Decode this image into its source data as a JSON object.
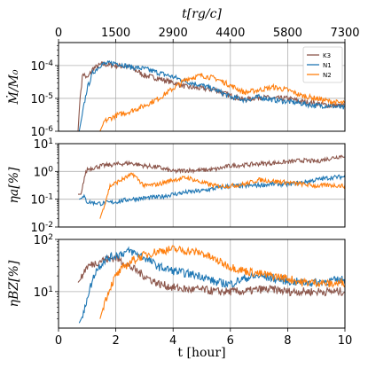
{
  "chart_data": [
    {
      "type": "line",
      "id": "mdot",
      "ylabel": "Ṁ/M₀",
      "yscale": "log",
      "ylim": [
        1e-06,
        0.0005
      ],
      "yticks": [
        {
          "value": 0.0001,
          "base": "10",
          "exp": "-4"
        },
        {
          "value": 1e-05,
          "base": "10",
          "exp": "-5"
        },
        {
          "value": 1e-06,
          "base": "10",
          "exp": "-6"
        }
      ],
      "grid": true,
      "legend_position": "top-right",
      "series": [
        {
          "name": "K3",
          "color": "#8c564b",
          "start": 0.68,
          "y": [
            [
              0.68,
              1e-06
            ],
            [
              0.75,
              1e-05
            ],
            [
              0.85,
              6e-05
            ],
            [
              1.0,
              4e-05
            ],
            [
              1.2,
              8e-05
            ],
            [
              1.5,
              0.00011
            ],
            [
              2.0,
              0.0001
            ],
            [
              2.5,
              9e-05
            ],
            [
              3.0,
              5e-05
            ],
            [
              3.5,
              4e-05
            ],
            [
              4.0,
              3e-05
            ],
            [
              4.5,
              2.2e-05
            ],
            [
              5.0,
              2e-05
            ],
            [
              5.5,
              1.8e-05
            ],
            [
              6.0,
              1.2e-05
            ],
            [
              6.5,
              9e-06
            ],
            [
              7.0,
              1.1e-05
            ],
            [
              7.5,
              1e-05
            ],
            [
              8.0,
              1e-05
            ],
            [
              8.5,
              8e-06
            ],
            [
              9.0,
              7e-06
            ],
            [
              9.5,
              6e-06
            ],
            [
              10.0,
              6e-06
            ]
          ]
        },
        {
          "name": "N1",
          "color": "#1f77b4",
          "start": 0.72,
          "y": [
            [
              0.72,
              1e-06
            ],
            [
              0.85,
              4e-06
            ],
            [
              1.0,
              2e-05
            ],
            [
              1.2,
              6e-05
            ],
            [
              1.5,
              0.00011
            ],
            [
              2.0,
              0.00012
            ],
            [
              2.5,
              9e-05
            ],
            [
              3.0,
              8e-05
            ],
            [
              3.5,
              6e-05
            ],
            [
              4.0,
              4.5e-05
            ],
            [
              4.5,
              3.2e-05
            ],
            [
              5.0,
              2.5e-05
            ],
            [
              5.5,
              1.8e-05
            ],
            [
              6.0,
              1.1e-05
            ],
            [
              6.5,
              9e-06
            ],
            [
              7.0,
              1.1e-05
            ],
            [
              7.5,
              9e-06
            ],
            [
              8.0,
              8e-06
            ],
            [
              8.5,
              7e-06
            ],
            [
              9.0,
              6e-06
            ],
            [
              9.5,
              6e-06
            ],
            [
              10.0,
              5e-06
            ]
          ]
        },
        {
          "name": "N2",
          "color": "#ff7f0e",
          "start": 1.45,
          "y": [
            [
              1.45,
              1e-06
            ],
            [
              1.6,
              2e-06
            ],
            [
              2.0,
              3e-06
            ],
            [
              2.5,
              4e-06
            ],
            [
              3.0,
              6e-06
            ],
            [
              3.5,
              1e-05
            ],
            [
              4.0,
              2e-05
            ],
            [
              4.5,
              4e-05
            ],
            [
              5.0,
              5e-05
            ],
            [
              5.5,
              4e-05
            ],
            [
              6.0,
              2.5e-05
            ],
            [
              6.5,
              1.5e-05
            ],
            [
              7.0,
              1.8e-05
            ],
            [
              7.5,
              2.2e-05
            ],
            [
              8.0,
              1.8e-05
            ],
            [
              8.5,
              1.2e-05
            ],
            [
              9.0,
              1e-05
            ],
            [
              9.5,
              8e-06
            ],
            [
              10.0,
              7e-06
            ]
          ]
        }
      ]
    },
    {
      "type": "line",
      "id": "eta_a",
      "ylabel": "ηa[%]",
      "yscale": "log",
      "ylim": [
        0.01,
        10
      ],
      "yticks": [
        {
          "value": 10,
          "base": "10",
          "exp": "1"
        },
        {
          "value": 1,
          "base": "10",
          "exp": "0"
        },
        {
          "value": 0.1,
          "base": "10",
          "exp": "-1"
        },
        {
          "value": 0.01,
          "base": "10",
          "exp": "-2"
        }
      ],
      "grid": true,
      "series": [
        {
          "name": "K3",
          "color": "#8c564b",
          "start": 0.68,
          "y": [
            [
              0.68,
              0.15
            ],
            [
              0.8,
              0.15
            ],
            [
              0.9,
              0.6
            ],
            [
              1.0,
              1.2
            ],
            [
              1.5,
              1.6
            ],
            [
              2.0,
              1.8
            ],
            [
              2.5,
              2.0
            ],
            [
              3.0,
              1.6
            ],
            [
              3.5,
              1.4
            ],
            [
              4.0,
              1.0
            ],
            [
              4.5,
              1.1
            ],
            [
              5.0,
              1.1
            ],
            [
              5.5,
              1.2
            ],
            [
              6.0,
              1.6
            ],
            [
              6.5,
              1.7
            ],
            [
              7.0,
              1.9
            ],
            [
              7.5,
              2.0
            ],
            [
              8.0,
              2.2
            ],
            [
              8.5,
              2.5
            ],
            [
              9.0,
              2.3
            ],
            [
              9.5,
              3.0
            ],
            [
              10.0,
              3.8
            ]
          ]
        },
        {
          "name": "N1",
          "color": "#1f77b4",
          "start": 0.72,
          "y": [
            [
              0.72,
              0.1
            ],
            [
              0.9,
              0.12
            ],
            [
              1.0,
              0.08
            ],
            [
              1.5,
              0.07
            ],
            [
              2.0,
              0.08
            ],
            [
              2.5,
              0.1
            ],
            [
              3.0,
              0.11
            ],
            [
              3.5,
              0.12
            ],
            [
              4.0,
              0.15
            ],
            [
              4.5,
              0.18
            ],
            [
              5.0,
              0.2
            ],
            [
              5.5,
              0.25
            ],
            [
              6.0,
              0.3
            ],
            [
              6.5,
              0.3
            ],
            [
              7.0,
              0.32
            ],
            [
              7.5,
              0.35
            ],
            [
              8.0,
              0.35
            ],
            [
              8.5,
              0.4
            ],
            [
              9.0,
              0.5
            ],
            [
              9.5,
              0.6
            ],
            [
              10.0,
              0.65
            ]
          ]
        },
        {
          "name": "N2",
          "color": "#ff7f0e",
          "start": 1.45,
          "y": [
            [
              1.45,
              0.02
            ],
            [
              1.8,
              0.3
            ],
            [
              2.2,
              0.5
            ],
            [
              2.6,
              0.8
            ],
            [
              3.0,
              0.3
            ],
            [
              3.5,
              0.35
            ],
            [
              4.0,
              0.5
            ],
            [
              4.5,
              0.6
            ],
            [
              5.0,
              0.4
            ],
            [
              5.5,
              0.3
            ],
            [
              6.0,
              0.3
            ],
            [
              6.5,
              0.35
            ],
            [
              7.0,
              0.5
            ],
            [
              7.5,
              0.45
            ],
            [
              8.0,
              0.4
            ],
            [
              8.5,
              0.35
            ],
            [
              9.0,
              0.3
            ],
            [
              9.5,
              0.32
            ],
            [
              10.0,
              0.3
            ]
          ]
        }
      ]
    },
    {
      "type": "line",
      "id": "eta_bz",
      "ylabel": "ηBZ[%]",
      "yscale": "log",
      "ylim": [
        2,
        100
      ],
      "yticks": [
        {
          "value": 100,
          "base": "10",
          "exp": "2"
        },
        {
          "value": 10,
          "base": "10",
          "exp": "1"
        }
      ],
      "grid": true,
      "series": [
        {
          "name": "K3",
          "color": "#8c564b",
          "start": 0.68,
          "y": [
            [
              0.68,
              15
            ],
            [
              0.8,
              18
            ],
            [
              0.9,
              25
            ],
            [
              1.0,
              30
            ],
            [
              1.5,
              40
            ],
            [
              2.0,
              45
            ],
            [
              2.5,
              30
            ],
            [
              3.0,
              20
            ],
            [
              3.5,
              14
            ],
            [
              4.0,
              12
            ],
            [
              4.5,
              11
            ],
            [
              5.0,
              11
            ],
            [
              5.5,
              10
            ],
            [
              6.0,
              10
            ],
            [
              6.5,
              10
            ],
            [
              7.0,
              11
            ],
            [
              7.5,
              11
            ],
            [
              8.0,
              10
            ],
            [
              8.5,
              10
            ],
            [
              9.0,
              10
            ],
            [
              9.5,
              10
            ],
            [
              10.0,
              10
            ]
          ]
        },
        {
          "name": "N1",
          "color": "#1f77b4",
          "start": 0.72,
          "y": [
            [
              0.72,
              2.5
            ],
            [
              0.9,
              4
            ],
            [
              1.0,
              8
            ],
            [
              1.3,
              25
            ],
            [
              1.6,
              40
            ],
            [
              2.0,
              50
            ],
            [
              2.5,
              60
            ],
            [
              3.0,
              45
            ],
            [
              3.5,
              30
            ],
            [
              4.0,
              25
            ],
            [
              4.5,
              22
            ],
            [
              5.0,
              20
            ],
            [
              5.5,
              15
            ],
            [
              6.0,
              14
            ],
            [
              6.5,
              18
            ],
            [
              7.0,
              20
            ],
            [
              7.5,
              18
            ],
            [
              8.0,
              16
            ],
            [
              8.5,
              15
            ],
            [
              9.0,
              15
            ],
            [
              9.5,
              16
            ],
            [
              10.0,
              17
            ]
          ]
        },
        {
          "name": "N2",
          "color": "#ff7f0e",
          "start": 1.45,
          "y": [
            [
              1.45,
              3
            ],
            [
              1.6,
              6
            ],
            [
              1.8,
              12
            ],
            [
              2.0,
              20
            ],
            [
              2.3,
              30
            ],
            [
              2.6,
              40
            ],
            [
              3.0,
              50
            ],
            [
              3.5,
              60
            ],
            [
              4.0,
              65
            ],
            [
              4.5,
              60
            ],
            [
              5.0,
              55
            ],
            [
              5.5,
              40
            ],
            [
              6.0,
              30
            ],
            [
              6.5,
              25
            ],
            [
              7.0,
              22
            ],
            [
              7.5,
              20
            ],
            [
              8.0,
              18
            ],
            [
              8.5,
              15
            ],
            [
              9.0,
              15
            ],
            [
              9.5,
              14
            ],
            [
              10.0,
              15
            ]
          ]
        }
      ]
    }
  ],
  "x_bottom": {
    "label": "t [hour]",
    "ticks": [
      "0",
      "2",
      "4",
      "6",
      "8",
      "10"
    ],
    "lim": [
      0,
      10
    ]
  },
  "x_top": {
    "label": "t[rg/c]",
    "ticks": [
      "0",
      "1500",
      "2900",
      "4400",
      "5800",
      "7300"
    ]
  },
  "legend": [
    "K3",
    "N1",
    "N2"
  ],
  "colors": {
    "K3": "#8c564b",
    "N1": "#1f77b4",
    "N2": "#ff7f0e"
  }
}
